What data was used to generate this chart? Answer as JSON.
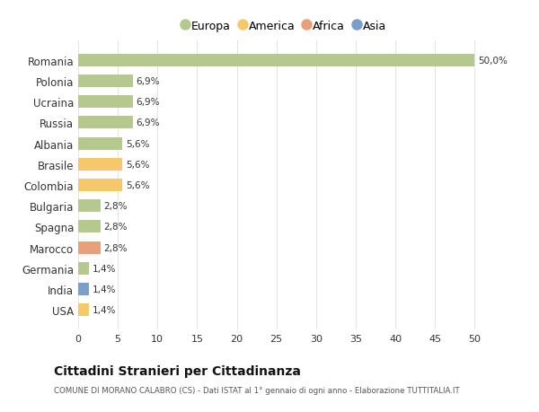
{
  "categories": [
    "Romania",
    "Polonia",
    "Ucraina",
    "Russia",
    "Albania",
    "Brasile",
    "Colombia",
    "Bulgaria",
    "Spagna",
    "Marocco",
    "Germania",
    "India",
    "USA"
  ],
  "values": [
    50.0,
    6.9,
    6.9,
    6.9,
    5.6,
    5.6,
    5.6,
    2.8,
    2.8,
    2.8,
    1.4,
    1.4,
    1.4
  ],
  "labels": [
    "50,0%",
    "6,9%",
    "6,9%",
    "6,9%",
    "5,6%",
    "5,6%",
    "5,6%",
    "2,8%",
    "2,8%",
    "2,8%",
    "1,4%",
    "1,4%",
    "1,4%"
  ],
  "colors": [
    "#b5c98e",
    "#b5c98e",
    "#b5c98e",
    "#b5c98e",
    "#b5c98e",
    "#f5c96a",
    "#f5c96a",
    "#b5c98e",
    "#b5c98e",
    "#e8a07a",
    "#b5c98e",
    "#7a9fc9",
    "#f5c96a"
  ],
  "legend_labels": [
    "Europa",
    "America",
    "Africa",
    "Asia"
  ],
  "legend_colors": [
    "#b5c98e",
    "#f5c96a",
    "#e8a07a",
    "#7a9fc9"
  ],
  "title": "Cittadini Stranieri per Cittadinanza",
  "subtitle": "COMUNE DI MORANO CALABRO (CS) - Dati ISTAT al 1° gennaio di ogni anno - Elaborazione TUTTITALIA.IT",
  "xlim": [
    0,
    52
  ],
  "xticks": [
    0,
    5,
    10,
    15,
    20,
    25,
    30,
    35,
    40,
    45,
    50
  ],
  "bg_color": "#ffffff",
  "grid_color": "#e5e5e5",
  "bar_height": 0.6
}
